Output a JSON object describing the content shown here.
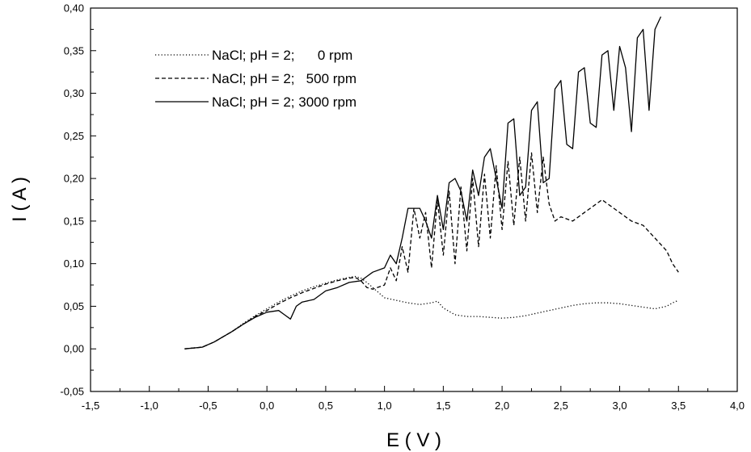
{
  "chart_data": {
    "type": "line",
    "title": "",
    "xlabel": "E ( V )",
    "ylabel": "I ( A )",
    "xlim": [
      -1.5,
      4.0
    ],
    "ylim": [
      -0.05,
      0.4
    ],
    "xticks": [
      "-1,5",
      "-1,0",
      "-0,5",
      "0,0",
      "0,5",
      "1,0",
      "1,5",
      "2,0",
      "2,5",
      "3,0",
      "3,5",
      "4,0"
    ],
    "yticks": [
      "-0,05",
      "0,00",
      "0,05",
      "0,10",
      "0,15",
      "0,20",
      "0,25",
      "0,30",
      "0,35",
      "0,40"
    ],
    "grid": false,
    "legend_position": "top-left",
    "series": [
      {
        "name": "NaCl; pH = 2;      0 rpm",
        "style": "dotted",
        "color": "#000000",
        "x": [
          -0.7,
          -0.55,
          -0.45,
          -0.3,
          -0.2,
          -0.1,
          0.0,
          0.1,
          0.2,
          0.3,
          0.4,
          0.5,
          0.6,
          0.7,
          0.75,
          0.8,
          0.85,
          0.9,
          0.95,
          1.0,
          1.1,
          1.2,
          1.3,
          1.4,
          1.45,
          1.5,
          1.6,
          1.7,
          1.8,
          1.9,
          2.0,
          2.1,
          2.2,
          2.3,
          2.4,
          2.5,
          2.6,
          2.7,
          2.8,
          2.9,
          3.0,
          3.1,
          3.2,
          3.3,
          3.4,
          3.45,
          3.5
        ],
        "y": [
          0.0,
          0.002,
          0.008,
          0.02,
          0.03,
          0.039,
          0.047,
          0.055,
          0.062,
          0.068,
          0.073,
          0.077,
          0.081,
          0.084,
          0.085,
          0.083,
          0.078,
          0.072,
          0.066,
          0.06,
          0.057,
          0.054,
          0.052,
          0.054,
          0.056,
          0.048,
          0.04,
          0.038,
          0.038,
          0.037,
          0.036,
          0.037,
          0.039,
          0.042,
          0.045,
          0.048,
          0.051,
          0.053,
          0.054,
          0.054,
          0.053,
          0.051,
          0.049,
          0.047,
          0.05,
          0.054,
          0.057
        ]
      },
      {
        "name": "NaCl; pH = 2;   500 rpm",
        "style": "dashed",
        "color": "#000000",
        "x": [
          -0.7,
          -0.55,
          -0.45,
          -0.3,
          -0.2,
          -0.1,
          0.0,
          0.1,
          0.2,
          0.3,
          0.4,
          0.5,
          0.6,
          0.7,
          0.75,
          0.8,
          0.85,
          0.9,
          1.0,
          1.05,
          1.1,
          1.15,
          1.2,
          1.25,
          1.3,
          1.35,
          1.4,
          1.45,
          1.5,
          1.55,
          1.6,
          1.65,
          1.7,
          1.75,
          1.8,
          1.85,
          1.9,
          1.95,
          2.0,
          2.05,
          2.1,
          2.15,
          2.2,
          2.25,
          2.3,
          2.35,
          2.4,
          2.45,
          2.5,
          2.6,
          2.7,
          2.8,
          2.85,
          2.9,
          3.0,
          3.1,
          3.2,
          3.3,
          3.4,
          3.45,
          3.5
        ],
        "y": [
          0.0,
          0.002,
          0.008,
          0.02,
          0.029,
          0.038,
          0.045,
          0.053,
          0.06,
          0.066,
          0.071,
          0.076,
          0.08,
          0.083,
          0.084,
          0.08,
          0.072,
          0.07,
          0.075,
          0.095,
          0.08,
          0.12,
          0.09,
          0.165,
          0.13,
          0.16,
          0.095,
          0.175,
          0.11,
          0.185,
          0.1,
          0.19,
          0.115,
          0.2,
          0.12,
          0.205,
          0.13,
          0.215,
          0.14,
          0.22,
          0.145,
          0.225,
          0.15,
          0.23,
          0.16,
          0.225,
          0.17,
          0.15,
          0.155,
          0.15,
          0.16,
          0.17,
          0.175,
          0.17,
          0.16,
          0.15,
          0.145,
          0.13,
          0.115,
          0.1,
          0.09
        ]
      },
      {
        "name": "NaCl; pH = 2; 3000 rpm",
        "style": "solid",
        "color": "#000000",
        "x": [
          -0.7,
          -0.55,
          -0.45,
          -0.3,
          -0.2,
          -0.1,
          0.0,
          0.1,
          0.15,
          0.2,
          0.25,
          0.3,
          0.4,
          0.5,
          0.6,
          0.7,
          0.8,
          0.85,
          0.9,
          1.0,
          1.05,
          1.1,
          1.15,
          1.2,
          1.25,
          1.3,
          1.35,
          1.4,
          1.45,
          1.5,
          1.55,
          1.6,
          1.65,
          1.7,
          1.75,
          1.8,
          1.85,
          1.9,
          1.95,
          2.0,
          2.05,
          2.1,
          2.15,
          2.2,
          2.25,
          2.3,
          2.35,
          2.4,
          2.45,
          2.5,
          2.55,
          2.6,
          2.65,
          2.7,
          2.75,
          2.8,
          2.85,
          2.9,
          2.95,
          3.0,
          3.05,
          3.1,
          3.15,
          3.2,
          3.25,
          3.3,
          3.35
        ],
        "y": [
          0.0,
          0.002,
          0.008,
          0.02,
          0.029,
          0.037,
          0.043,
          0.045,
          0.04,
          0.035,
          0.05,
          0.055,
          0.058,
          0.068,
          0.072,
          0.078,
          0.08,
          0.085,
          0.09,
          0.095,
          0.11,
          0.1,
          0.13,
          0.165,
          0.165,
          0.165,
          0.15,
          0.13,
          0.18,
          0.14,
          0.195,
          0.2,
          0.185,
          0.15,
          0.21,
          0.18,
          0.225,
          0.235,
          0.2,
          0.165,
          0.265,
          0.27,
          0.18,
          0.19,
          0.28,
          0.29,
          0.195,
          0.2,
          0.305,
          0.315,
          0.24,
          0.235,
          0.325,
          0.33,
          0.265,
          0.26,
          0.345,
          0.35,
          0.28,
          0.355,
          0.33,
          0.255,
          0.365,
          0.375,
          0.28,
          0.375,
          0.39
        ]
      }
    ]
  }
}
